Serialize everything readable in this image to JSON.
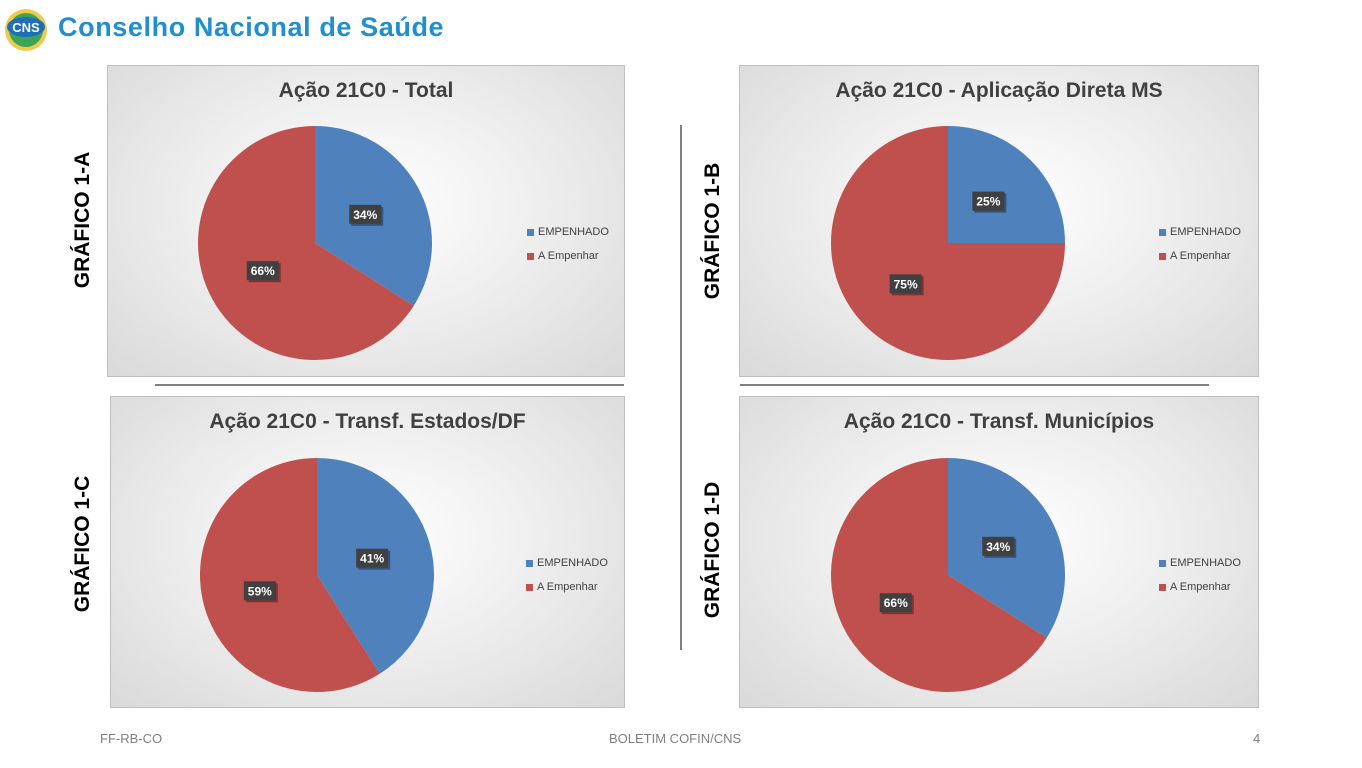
{
  "header": {
    "title": "Conselho Nacional de Saúde",
    "logo_text": "CNS"
  },
  "panel_labels": {
    "a": "GRÁFICO 1-A",
    "b": "GRÁFICO 1-B",
    "c": "GRÁFICO 1-C",
    "d": "GRÁFICO 1-D"
  },
  "footer": {
    "left": "FF-RB-CO",
    "center": "BOLETIM COFIN/CNS",
    "page": "4"
  },
  "colors": {
    "empenhado": "#4f81bd",
    "a_empenhar": "#c0504d",
    "brand": "#1f8fd0"
  },
  "chart_data": [
    {
      "id": "a",
      "type": "pie",
      "title": "Ação 21C0 - Total",
      "categories": [
        "EMPENHADO",
        "A Empenhar"
      ],
      "values": [
        34,
        66
      ],
      "data_labels": [
        "34%",
        "66%"
      ],
      "legend": "right"
    },
    {
      "id": "b",
      "type": "pie",
      "title": "Ação 21C0 - Aplicação Direta MS",
      "categories": [
        "EMPENHADO",
        "A Empenhar"
      ],
      "values": [
        25,
        75
      ],
      "data_labels": [
        "25%",
        "75%"
      ],
      "legend": "right"
    },
    {
      "id": "c",
      "type": "pie",
      "title": "Ação 21C0 - Transf. Estados/DF",
      "categories": [
        "EMPENHADO",
        "A Empenhar"
      ],
      "values": [
        41,
        59
      ],
      "data_labels": [
        "41%",
        "59%"
      ],
      "legend": "right"
    },
    {
      "id": "d",
      "type": "pie",
      "title": "Ação 21C0 - Transf. Municípios",
      "categories": [
        "EMPENHADO",
        "A Empenhar"
      ],
      "values": [
        34,
        66
      ],
      "data_labels": [
        "34%",
        "66%"
      ],
      "legend": "right"
    }
  ]
}
